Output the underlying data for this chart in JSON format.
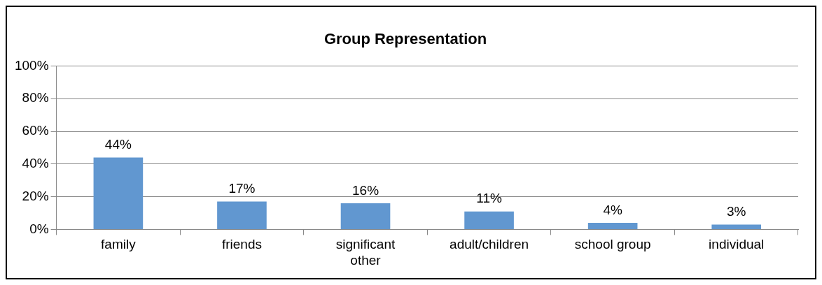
{
  "chart_data": {
    "type": "bar",
    "title": "Group Representation",
    "categories": [
      "family",
      "friends",
      "significant other",
      "adult/children",
      "school group",
      "individual"
    ],
    "values": [
      44,
      17,
      16,
      11,
      4,
      3
    ],
    "value_labels": [
      "44%",
      "17%",
      "16%",
      "11%",
      "4%",
      "3%"
    ],
    "color": "#6197d0",
    "ylim": [
      0,
      100
    ],
    "yticks": [
      {
        "value": 0,
        "label": "0%"
      },
      {
        "value": 20,
        "label": "20%"
      },
      {
        "value": 40,
        "label": "40%"
      },
      {
        "value": 60,
        "label": "60%"
      },
      {
        "value": 80,
        "label": "80%"
      },
      {
        "value": 100,
        "label": "100%"
      }
    ],
    "grid": "y",
    "legend": false
  }
}
